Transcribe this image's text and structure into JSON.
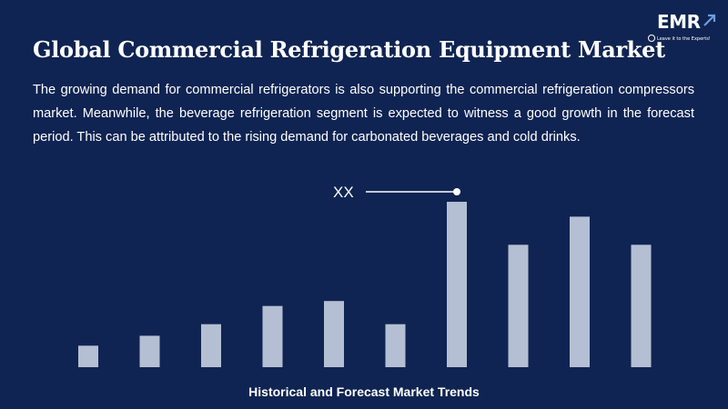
{
  "slide": {
    "title": "Global Commercial Refrigeration Equipment Market",
    "description": "The growing demand for commercial refrigerators is also supporting the commercial refrigeration compressors market. Meanwhile, the beverage refrigeration segment is expected to witness a good growth in the forecast period. This can be attributed to the rising demand for carbonated beverages and cold drinks.",
    "footer": "Historical and Forecast Market Trends"
  },
  "logo": {
    "name": "EMR",
    "tagline": "Leave it to the Experts!",
    "icon": "arrow-up-right-icon"
  },
  "colors": {
    "background": "#0f2452",
    "bar": "#b4bfd3",
    "text": "#ffffff"
  },
  "chart_data": {
    "type": "bar",
    "title": "",
    "xlabel": "",
    "ylabel": "",
    "categories": [
      "",
      "",
      "",
      "",
      "",
      "",
      "",
      "",
      "",
      ""
    ],
    "values": [
      13,
      19,
      26,
      37,
      40,
      26,
      100,
      74,
      91,
      74
    ],
    "ylim": [
      0,
      100
    ],
    "grid": false,
    "annotation": {
      "text": "XX",
      "bar_index": 6
    }
  }
}
